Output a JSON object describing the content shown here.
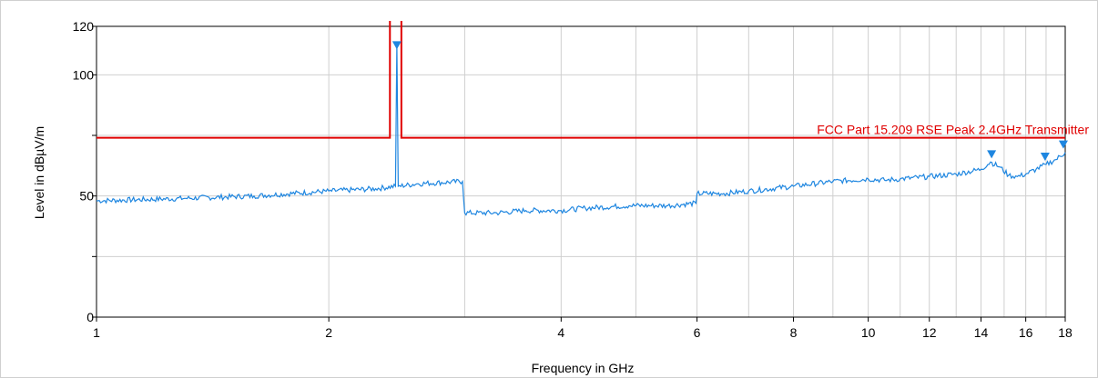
{
  "chart_data": {
    "type": "line",
    "xlabel": "Frequency in GHz",
    "ylabel": "Level in dBµV/m",
    "xlim": [
      1,
      18
    ],
    "ylim": [
      0,
      120
    ],
    "x_log_scale": true,
    "x_ticks": [
      1,
      2,
      4,
      6,
      8,
      10,
      12,
      14,
      16,
      18
    ],
    "y_ticks": [
      0,
      25,
      50,
      75,
      100,
      120
    ],
    "y_tick_labels": [
      "0",
      "",
      "50",
      "",
      "100",
      "120"
    ],
    "grid": true,
    "limit_line": {
      "label": "FCC Part 15.209 RSE Peak 2.4GHz Transmitter",
      "color": "#e00000",
      "level": 74,
      "notch": {
        "from": 2.4,
        "to": 2.4835,
        "level": 130
      }
    },
    "series": [
      {
        "color": "#1e86e0",
        "x": [
          1.0,
          1.3,
          1.6,
          2.0,
          2.3,
          2.44,
          2.45,
          2.46,
          2.6,
          2.98,
          3.0,
          3.3,
          3.6,
          4.0,
          4.3,
          4.9,
          5.5,
          5.98,
          6.0,
          6.5,
          7.0,
          8.0,
          9.0,
          10.0,
          10.5,
          11.0,
          12.0,
          13.0,
          14.0,
          14.4,
          14.8,
          15.2,
          15.6,
          16.0,
          16.5,
          17.0,
          17.5,
          18.0
        ],
        "values": [
          48,
          49,
          50,
          52,
          53,
          54,
          113,
          54,
          55,
          56,
          43,
          43,
          44,
          44,
          45,
          46,
          46,
          47,
          51,
          51,
          52,
          54,
          56,
          57,
          56.5,
          57,
          58,
          59,
          61,
          64,
          62,
          58.5,
          58,
          59,
          61,
          63,
          65,
          68
        ]
      }
    ],
    "markers": [
      {
        "x": 2.45,
        "y": 112
      },
      {
        "x": 14.45,
        "y": 67
      },
      {
        "x": 16.95,
        "y": 66
      },
      {
        "x": 17.9,
        "y": 71
      }
    ]
  }
}
